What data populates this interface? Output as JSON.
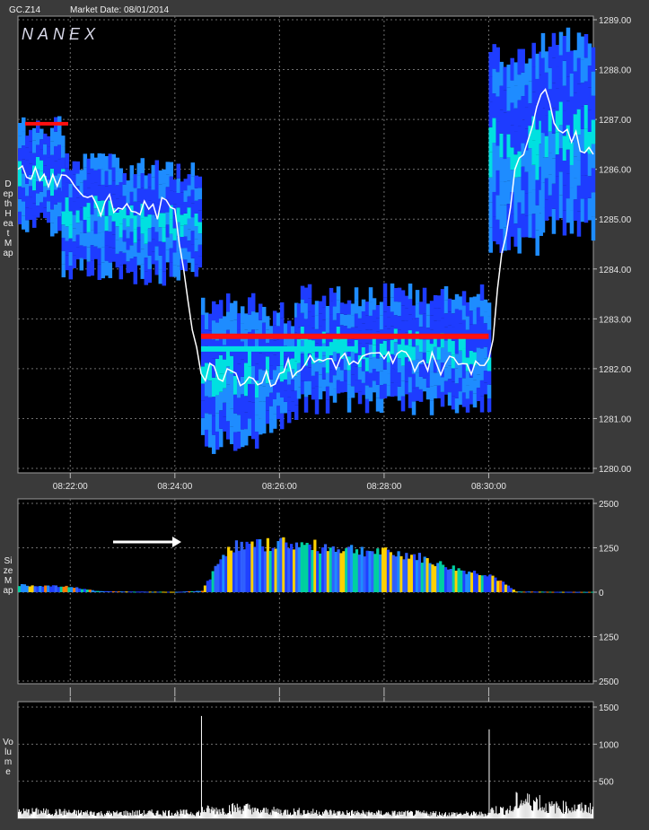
{
  "header": {
    "symbol": "GC.Z14",
    "market_date": "Market Date: 08/01/2014"
  },
  "watermark": "NANEX",
  "panels": {
    "depth": {
      "side_label": "Depth Heat Map"
    },
    "size": {
      "side_label": "Size Map"
    },
    "volume": {
      "side_label": "Volume"
    }
  },
  "colors": {
    "background": "#3a3a3a",
    "plot_bg": "#000000",
    "grid": "#6e6e6e",
    "heat_low": "#1e3cff",
    "heat_mid": "#1e8cff",
    "heat_high": "#00e0e0",
    "heat_peak": "#ff1010",
    "price_line": "#ffffff",
    "annotation_arrow": "#ffffff"
  },
  "chart_data": [
    {
      "type": "heatmap",
      "panel": "depth",
      "xlabel": "",
      "ylabel": "",
      "x_ticks": [
        "08:22:00",
        "08:24:00",
        "08:26:00",
        "08:28:00",
        "08:30:00"
      ],
      "y_ticks": [
        "1289.00",
        "1288.00",
        "1287.00",
        "1286.00",
        "1285.00",
        "1284.00",
        "1283.00",
        "1282.00",
        "1281.00",
        "1280.00"
      ],
      "ylim": [
        1280.0,
        1289.0
      ],
      "price_series": {
        "name": "",
        "x": [
          "08:21:00",
          "08:21:30",
          "08:22:00",
          "08:22:30",
          "08:23:00",
          "08:23:30",
          "08:24:00",
          "08:24:30",
          "08:25:00",
          "08:25:30",
          "08:26:00",
          "08:26:30",
          "08:27:00",
          "08:27:30",
          "08:28:00",
          "08:28:30",
          "08:29:00",
          "08:29:30",
          "08:30:00",
          "08:30:30",
          "08:31:00",
          "08:31:30",
          "08:32:00"
        ],
        "y": [
          1286.0,
          1285.9,
          1285.8,
          1285.3,
          1285.2,
          1285.2,
          1285.2,
          1281.9,
          1282.0,
          1281.8,
          1281.9,
          1282.1,
          1282.2,
          1282.1,
          1282.2,
          1282.2,
          1282.1,
          1282.1,
          1282.2,
          1286.0,
          1287.5,
          1286.8,
          1286.3
        ]
      },
      "heat_peak_level": 1282.65
    },
    {
      "type": "bar",
      "panel": "size",
      "y_ticks": [
        "2500",
        "1250",
        "0",
        "1250",
        "2500"
      ],
      "ylim": [
        -2500,
        2500
      ],
      "x": [
        "08:21:00",
        "08:21:30",
        "08:22:00",
        "08:22:30",
        "08:23:00",
        "08:23:30",
        "08:24:00",
        "08:24:30",
        "08:25:00",
        "08:25:30",
        "08:26:00",
        "08:26:30",
        "08:27:00",
        "08:27:30",
        "08:28:00",
        "08:28:30",
        "08:29:00",
        "08:29:30",
        "08:30:00",
        "08:30:30",
        "08:31:00",
        "08:31:30",
        "08:32:00"
      ],
      "values": [
        200,
        180,
        150,
        30,
        20,
        15,
        10,
        40,
        1300,
        1300,
        1400,
        1300,
        1250,
        1200,
        1100,
        1050,
        800,
        600,
        500,
        20,
        15,
        10,
        10
      ]
    },
    {
      "type": "bar",
      "panel": "volume",
      "y_ticks": [
        "1500",
        "1000",
        "500"
      ],
      "ylim": [
        0,
        1500
      ],
      "x": [
        "08:21:00",
        "08:21:30",
        "08:22:00",
        "08:22:30",
        "08:23:00",
        "08:23:30",
        "08:24:00",
        "08:24:30",
        "08:25:00",
        "08:25:30",
        "08:26:00",
        "08:26:30",
        "08:27:00",
        "08:27:30",
        "08:28:00",
        "08:28:30",
        "08:29:00",
        "08:29:30",
        "08:30:00",
        "08:30:30",
        "08:31:00",
        "08:31:30",
        "08:32:00"
      ],
      "values": [
        120,
        110,
        100,
        90,
        95,
        100,
        100,
        1380,
        180,
        130,
        120,
        110,
        100,
        95,
        90,
        90,
        80,
        80,
        1200,
        300,
        200,
        180,
        150
      ]
    }
  ]
}
